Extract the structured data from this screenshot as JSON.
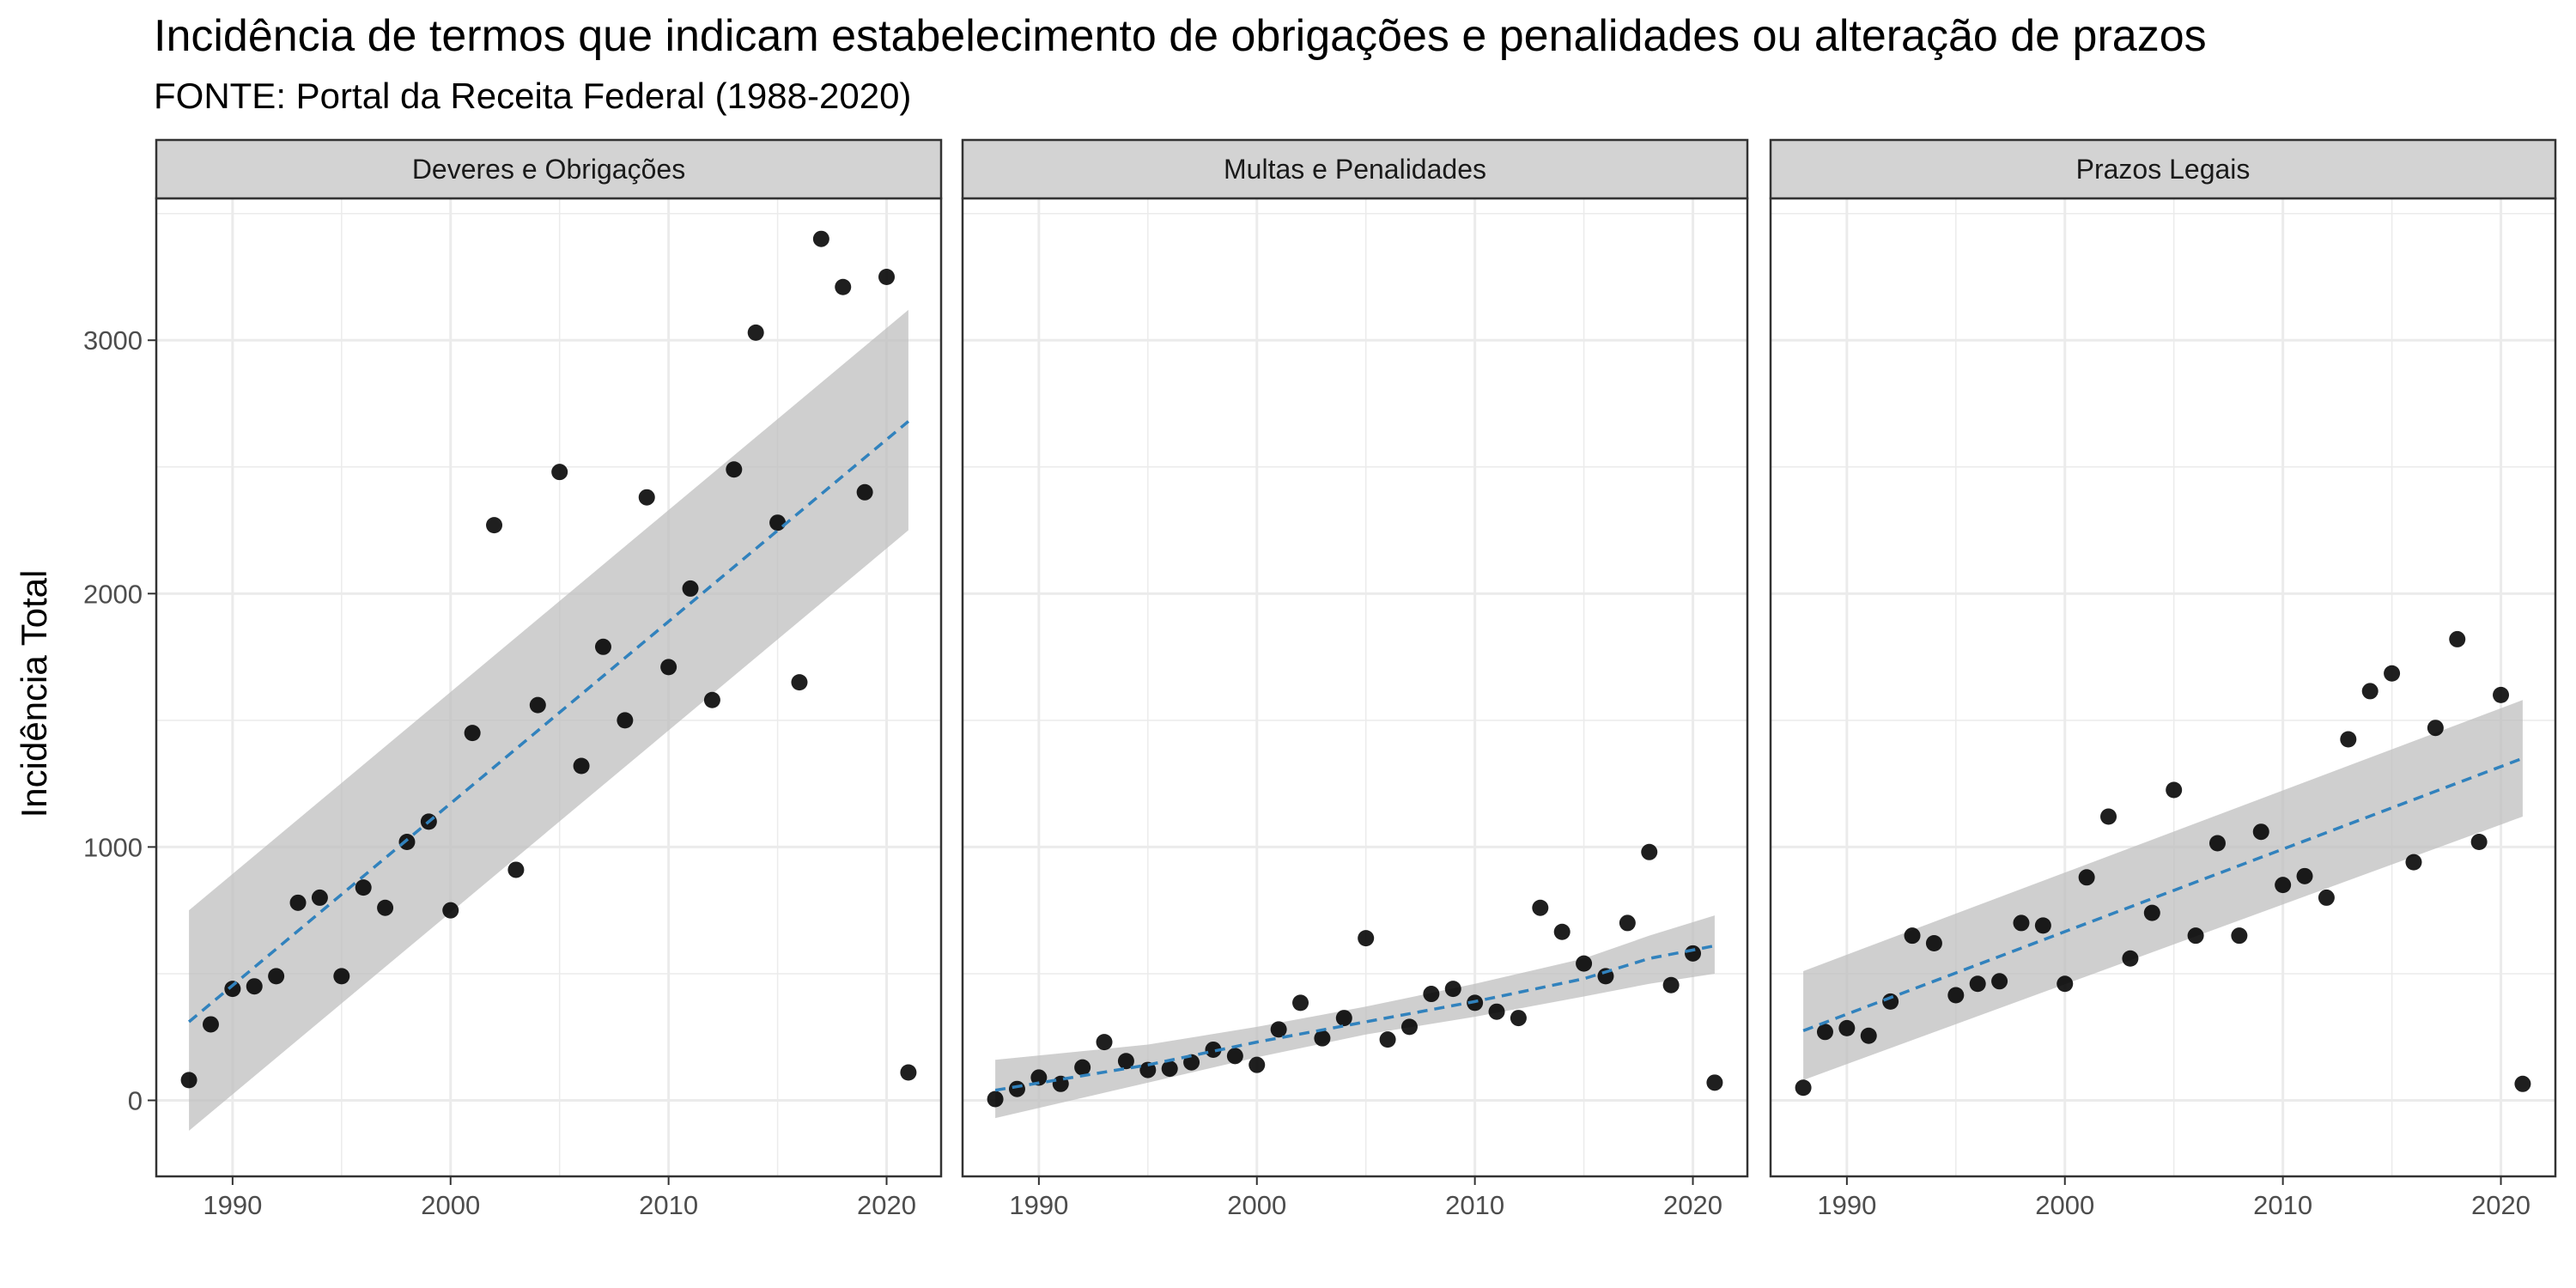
{
  "title": "Incidência de termos que indicam estabelecimento de obrigações e penalidades ou alteração de prazos",
  "subtitle": "FONTE: Portal da Receita Federal (1988-2020)",
  "colors": {
    "panel_bg": "#ffffff",
    "grid": "#ebebeb",
    "strip_bg": "#d3d3d3",
    "border": "#333333",
    "points": "#000000",
    "trend": "#3182bd",
    "ribbon": "#bdbdbd"
  },
  "chart_data": {
    "type": "scatter",
    "ylabel": "Incidência Total",
    "xlabel": "",
    "xlim": [
      1986.5,
      2022.5
    ],
    "ylim": [
      -300,
      3560
    ],
    "x_ticks": [
      1990,
      2000,
      2010,
      2020
    ],
    "y_ticks": [
      0,
      1000,
      2000,
      3000
    ],
    "grid": true,
    "trend": "linear regression with confidence band (dashed blue)",
    "panels": [
      {
        "strip": "Deveres e Obrigações",
        "points": [
          [
            1988,
            80
          ],
          [
            1989,
            300
          ],
          [
            1990,
            440
          ],
          [
            1991,
            450
          ],
          [
            1992,
            490
          ],
          [
            1993,
            780
          ],
          [
            1994,
            800
          ],
          [
            1995,
            490
          ],
          [
            1996,
            840
          ],
          [
            1997,
            760
          ],
          [
            1998,
            1020
          ],
          [
            1999,
            1100
          ],
          [
            2000,
            750
          ],
          [
            2001,
            1450
          ],
          [
            2002,
            2270
          ],
          [
            2003,
            910
          ],
          [
            2004,
            1560
          ],
          [
            2005,
            2480
          ],
          [
            2006,
            1320
          ],
          [
            2007,
            1790
          ],
          [
            2008,
            1500
          ],
          [
            2009,
            2380
          ],
          [
            2010,
            1710
          ],
          [
            2011,
            2020
          ],
          [
            2012,
            1580
          ],
          [
            2013,
            2490
          ],
          [
            2014,
            3030
          ],
          [
            2015,
            2280
          ],
          [
            2016,
            1650
          ],
          [
            2017,
            3400
          ],
          [
            2018,
            3210
          ],
          [
            2019,
            2400
          ],
          [
            2020,
            3250
          ],
          [
            2021,
            110
          ]
        ],
        "fit": {
          "x": [
            1988,
            2021
          ],
          "y": [
            310,
            2680
          ],
          "lower": [
            -120,
            2250
          ],
          "upper": [
            750,
            3120
          ]
        }
      },
      {
        "strip": "Multas e Penalidades",
        "points": [
          [
            1988,
            5
          ],
          [
            1989,
            45
          ],
          [
            1990,
            90
          ],
          [
            1991,
            65
          ],
          [
            1992,
            130
          ],
          [
            1993,
            230
          ],
          [
            1994,
            155
          ],
          [
            1995,
            120
          ],
          [
            1996,
            125
          ],
          [
            1997,
            150
          ],
          [
            1998,
            200
          ],
          [
            1999,
            175
          ],
          [
            2000,
            140
          ],
          [
            2001,
            280
          ],
          [
            2002,
            385
          ],
          [
            2003,
            245
          ],
          [
            2004,
            325
          ],
          [
            2005,
            640
          ],
          [
            2006,
            240
          ],
          [
            2007,
            290
          ],
          [
            2008,
            420
          ],
          [
            2009,
            440
          ],
          [
            2010,
            385
          ],
          [
            2011,
            350
          ],
          [
            2012,
            325
          ],
          [
            2013,
            760
          ],
          [
            2014,
            665
          ],
          [
            2015,
            540
          ],
          [
            2016,
            490
          ],
          [
            2017,
            700
          ],
          [
            2018,
            980
          ],
          [
            2019,
            455
          ],
          [
            2020,
            580
          ],
          [
            2021,
            70
          ]
        ],
        "fit": {
          "x": [
            1988,
            1995,
            2000,
            2005,
            2010,
            2015,
            2018,
            2021
          ],
          "y": [
            40,
            140,
            230,
            310,
            390,
            480,
            560,
            610
          ],
          "lower": [
            -70,
            70,
            170,
            260,
            330,
            410,
            460,
            500
          ],
          "upper": [
            160,
            220,
            290,
            370,
            460,
            560,
            650,
            730
          ]
        }
      },
      {
        "strip": "Prazos Legais",
        "points": [
          [
            1988,
            50
          ],
          [
            1989,
            270
          ],
          [
            1990,
            285
          ],
          [
            1991,
            255
          ],
          [
            1992,
            390
          ],
          [
            1993,
            650
          ],
          [
            1994,
            620
          ],
          [
            1995,
            415
          ],
          [
            1996,
            460
          ],
          [
            1997,
            470
          ],
          [
            1998,
            700
          ],
          [
            1999,
            690
          ],
          [
            2000,
            460
          ],
          [
            2001,
            880
          ],
          [
            2002,
            1120
          ],
          [
            2003,
            560
          ],
          [
            2004,
            740
          ],
          [
            2005,
            1225
          ],
          [
            2006,
            650
          ],
          [
            2007,
            1015
          ],
          [
            2008,
            650
          ],
          [
            2009,
            1060
          ],
          [
            2010,
            850
          ],
          [
            2011,
            885
          ],
          [
            2012,
            800
          ],
          [
            2013,
            1425
          ],
          [
            2014,
            1615
          ],
          [
            2015,
            1685
          ],
          [
            2016,
            940
          ],
          [
            2017,
            1470
          ],
          [
            2018,
            1820
          ],
          [
            2019,
            1020
          ],
          [
            2020,
            1600
          ],
          [
            2021,
            65
          ]
        ],
        "fit": {
          "x": [
            1988,
            2021
          ],
          "y": [
            275,
            1350
          ],
          "lower": [
            80,
            1120
          ],
          "upper": [
            510,
            1580
          ]
        }
      }
    ]
  }
}
